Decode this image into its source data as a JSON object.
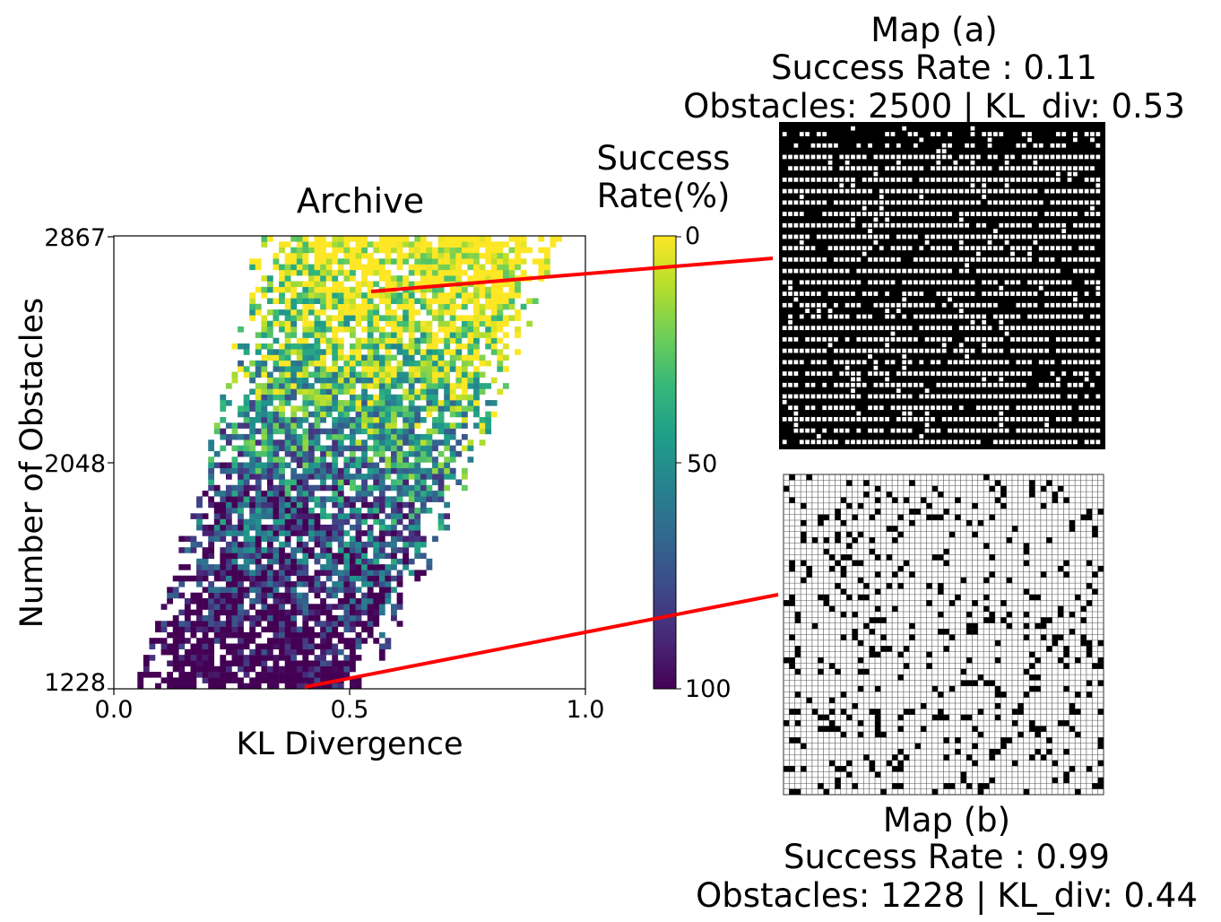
{
  "chart_data": [
    {
      "type": "heatmap",
      "title": "Archive",
      "xlabel": "KL Divergence",
      "ylabel": "Number of Obstacles",
      "xlim": [
        0.0,
        1.0
      ],
      "ylim": [
        1228,
        2867
      ],
      "x_ticks": [
        "0.0",
        "0.5",
        "1.0"
      ],
      "y_ticks": [
        "1228",
        "2048",
        "2867"
      ],
      "grid": false,
      "colorbar": {
        "title_line1": "Success",
        "title_line2": "Rate(%)",
        "ticks": [
          "0",
          "50",
          "100"
        ],
        "colormap": [
          "#fde725",
          "#b5de2b",
          "#6ece58",
          "#35b779",
          "#1f9e89",
          "#26828e",
          "#31688e",
          "#3e4989",
          "#482878",
          "#440154"
        ]
      },
      "cell_distribution_note": "archive cells populated across KL 0.03-0.97; high-obstacle cells mostly low success (yellow), low-obstacle cells mostly high success (purple)",
      "highlighted_points": [
        {
          "label": "Map (a)",
          "kl_div": 0.53,
          "obstacles": 2500,
          "success_rate": 0.11
        },
        {
          "label": "Map (b)",
          "kl_div": 0.44,
          "obstacles": 1228,
          "success_rate": 0.99
        }
      ]
    }
  ],
  "map_a": {
    "title": "Map (a)",
    "success_line": "Success Rate : 0.11",
    "info_line": "Obstacles: 2500 | KL_div: 0.53"
  },
  "map_b": {
    "title": "Map (b)",
    "success_line": "Success Rate : 0.99",
    "info_line": "Obstacles: 1228 | KL_div: 0.44"
  },
  "colors": {
    "connector": "#ff0000",
    "obstacle": "#000000",
    "free": "#ffffff"
  }
}
